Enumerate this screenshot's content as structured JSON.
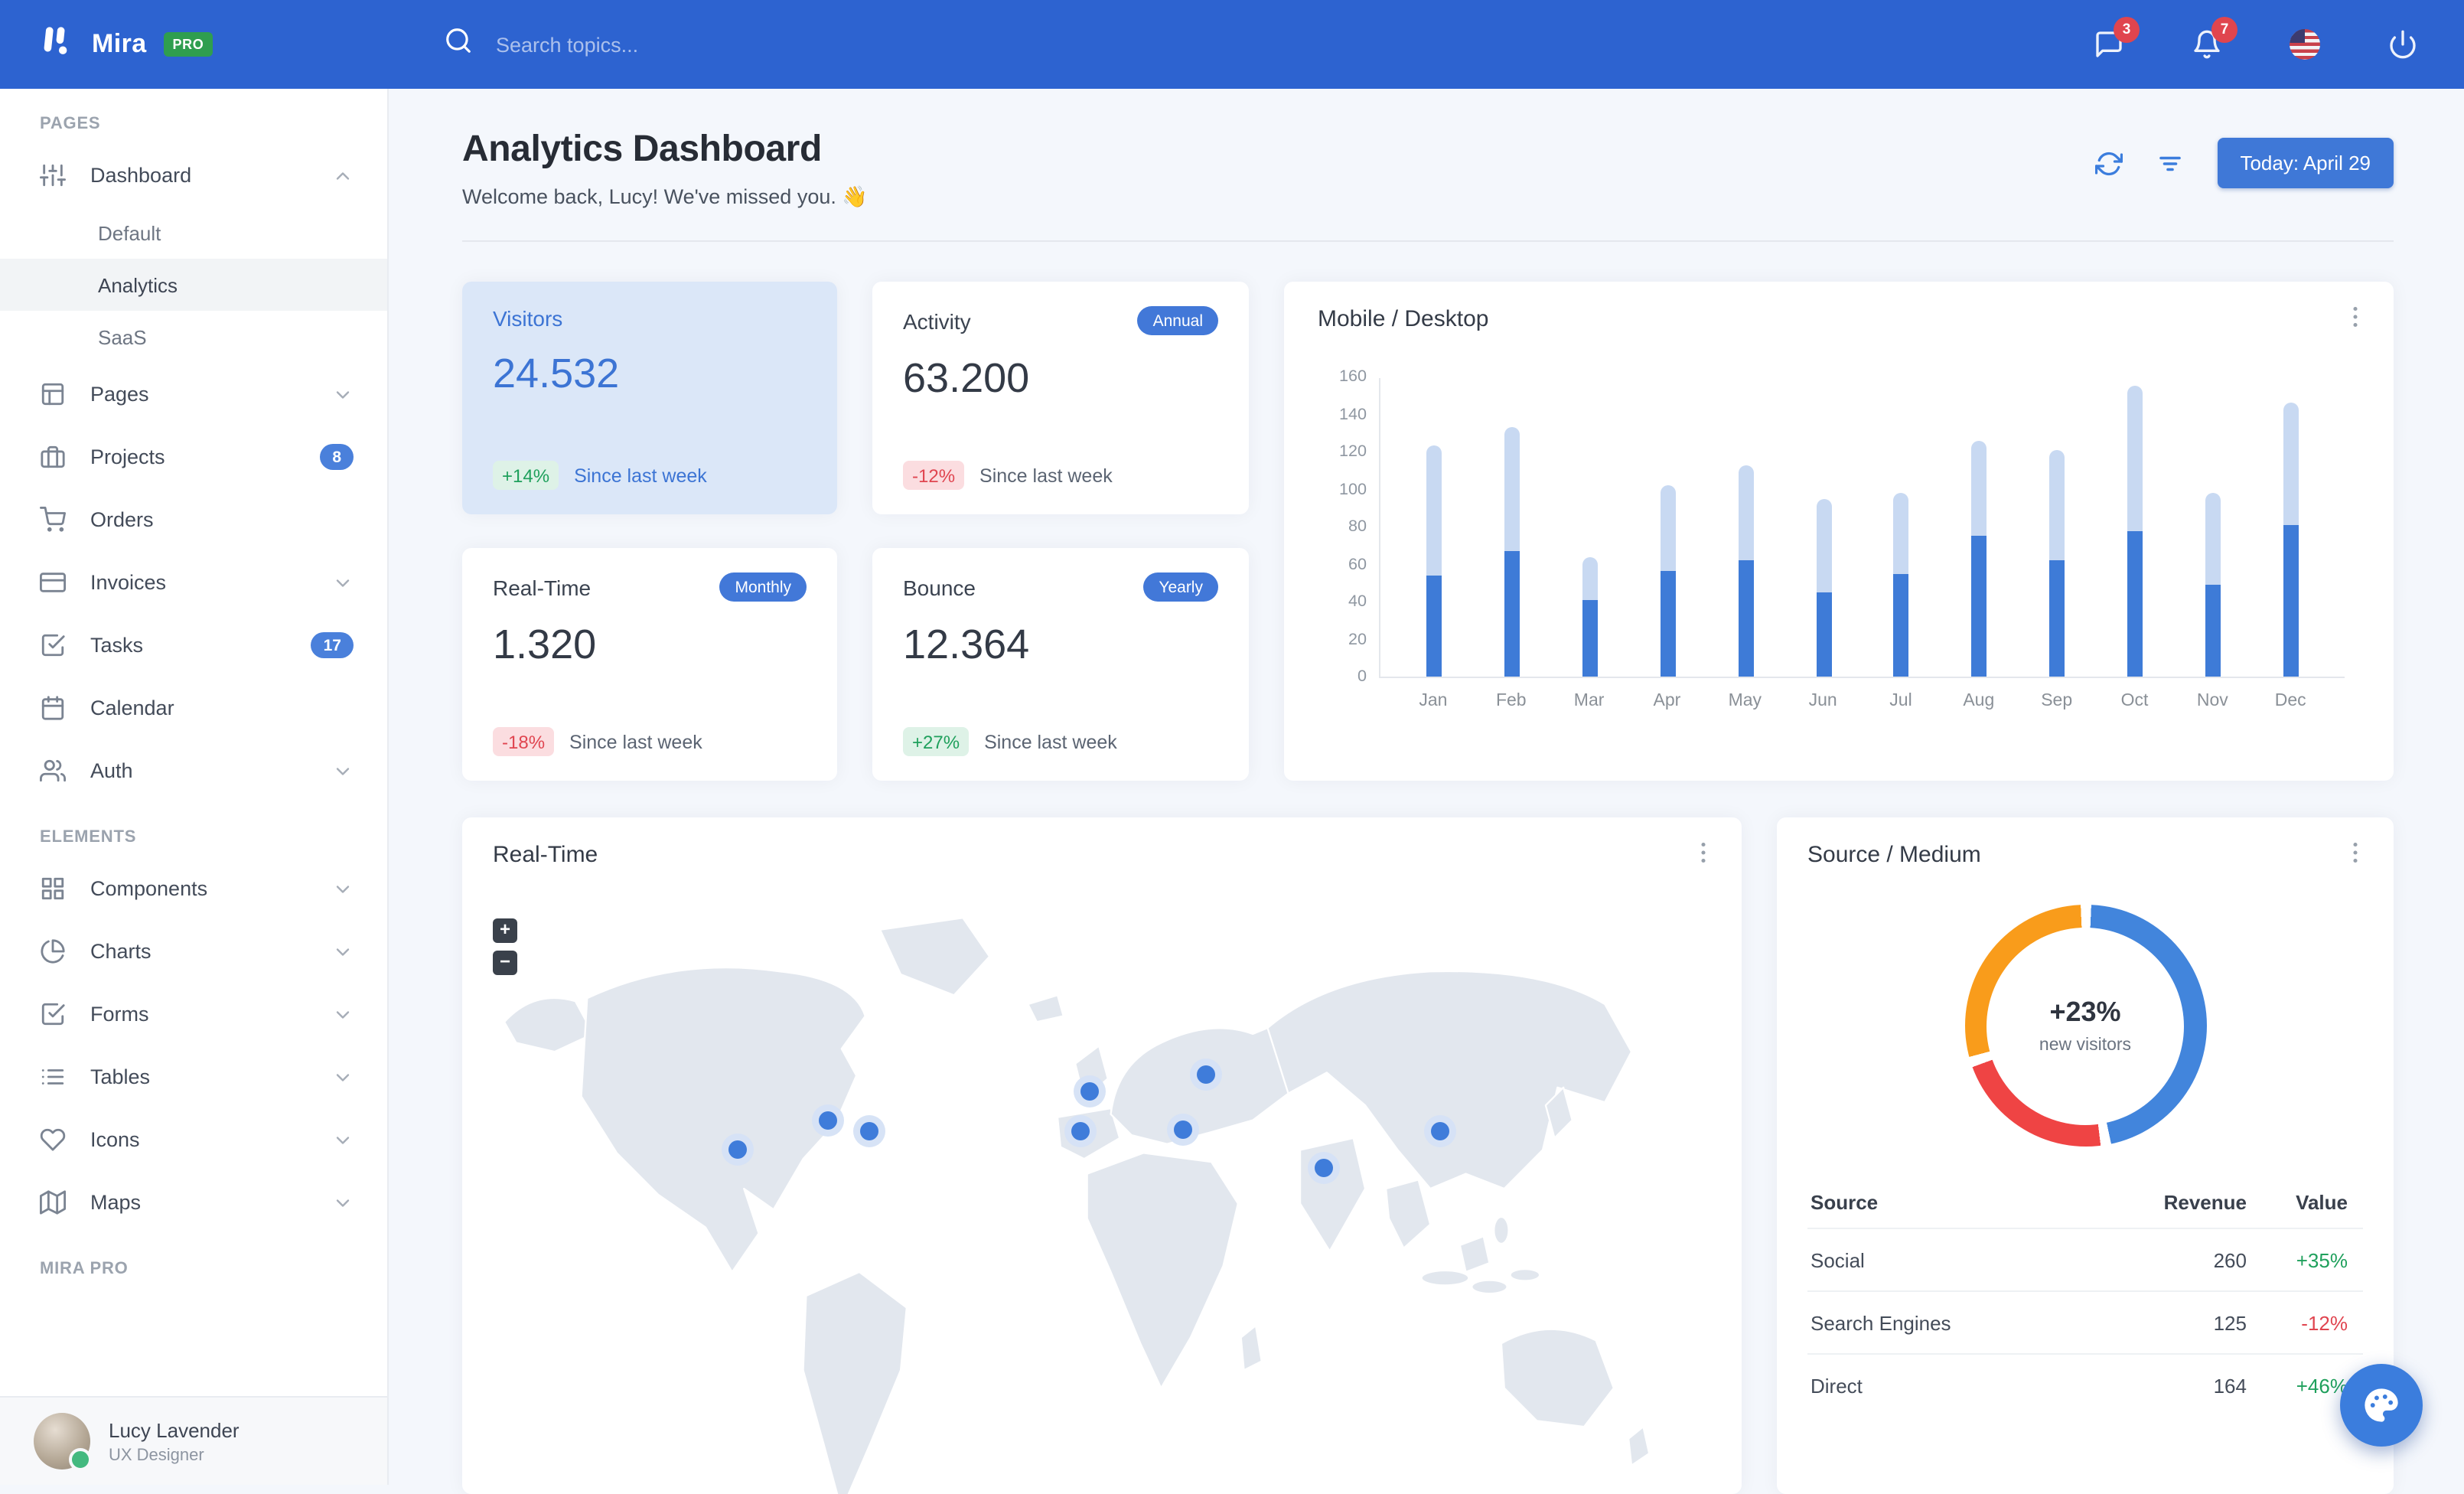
{
  "colors": {
    "navbar": "#2d63d0",
    "primary": "#3b7ddd",
    "bar_mobile": "#3e7bd7",
    "bar_desktop": "#c8d9f2",
    "success": "#1fa05c",
    "danger": "#e04550",
    "warning": "#f99c1b",
    "donut_red": "#ef4444",
    "badge_red": "#e0454e",
    "pro_green": "#2f9e4f",
    "land": "#e2e7ee"
  },
  "navbar": {
    "logo": "Mira",
    "pro_badge": "PRO",
    "search_placeholder": "Search topics...",
    "messages_badge": "3",
    "notifications_badge": "7"
  },
  "sidebar": {
    "sections": [
      {
        "label": "PAGES",
        "items": [
          {
            "label": "Dashboard",
            "icon": "sliders",
            "chevron": "up",
            "children": [
              {
                "label": "Default"
              },
              {
                "label": "Analytics",
                "active": true
              },
              {
                "label": "SaaS"
              }
            ]
          },
          {
            "label": "Pages",
            "icon": "layout",
            "chevron": "down"
          },
          {
            "label": "Projects",
            "icon": "briefcase",
            "badge": "8"
          },
          {
            "label": "Orders",
            "icon": "cart"
          },
          {
            "label": "Invoices",
            "icon": "credit-card",
            "chevron": "down"
          },
          {
            "label": "Tasks",
            "icon": "check-square",
            "badge": "17"
          },
          {
            "label": "Calendar",
            "icon": "calendar"
          },
          {
            "label": "Auth",
            "icon": "users",
            "chevron": "down"
          }
        ]
      },
      {
        "label": "ELEMENTS",
        "items": [
          {
            "label": "Components",
            "icon": "grid",
            "chevron": "down"
          },
          {
            "label": "Charts",
            "icon": "pie",
            "chevron": "down"
          },
          {
            "label": "Forms",
            "icon": "check-square",
            "chevron": "down"
          },
          {
            "label": "Tables",
            "icon": "list",
            "chevron": "down"
          },
          {
            "label": "Icons",
            "icon": "heart",
            "chevron": "down"
          },
          {
            "label": "Maps",
            "icon": "map",
            "chevron": "down"
          }
        ]
      }
    ],
    "footer_section_label": "MIRA PRO",
    "user": {
      "name": "Lucy Lavender",
      "role": "UX Designer"
    }
  },
  "header": {
    "title": "Analytics Dashboard",
    "welcome": "Welcome back, Lucy! We've missed you. 👋",
    "today_button": "Today: April 29"
  },
  "stats": [
    {
      "title": "Visitors",
      "badge": "",
      "value": "24.532",
      "delta": "+14%",
      "trend": "up",
      "caption": "Since last week",
      "variant": "accent"
    },
    {
      "title": "Activity",
      "badge": "Annual",
      "value": "63.200",
      "delta": "-12%",
      "trend": "down",
      "caption": "Since last week",
      "variant": "plain"
    },
    {
      "title": "Real-Time",
      "badge": "Monthly",
      "value": "1.320",
      "delta": "-18%",
      "trend": "down",
      "caption": "Since last week",
      "variant": "plain"
    },
    {
      "title": "Bounce",
      "badge": "Yearly",
      "value": "12.364",
      "delta": "+27%",
      "trend": "up",
      "caption": "Since last week",
      "variant": "plain"
    }
  ],
  "chart_data": [
    {
      "type": "bar",
      "stacked": true,
      "title": "Mobile / Desktop",
      "categories": [
        "Jan",
        "Feb",
        "Mar",
        "Apr",
        "May",
        "Jun",
        "Jul",
        "Aug",
        "Sep",
        "Oct",
        "Nov",
        "Dec"
      ],
      "series": [
        {
          "name": "Mobile",
          "values": [
            54,
            67,
            41,
            56,
            62,
            45,
            55,
            75,
            62,
            78,
            49,
            81
          ]
        },
        {
          "name": "Desktop",
          "values": [
            69,
            66,
            23,
            46,
            51,
            50,
            43,
            51,
            59,
            77,
            49,
            65
          ]
        }
      ],
      "ylim": [
        0,
        160
      ],
      "yticks": [
        0,
        20,
        40,
        60,
        80,
        100,
        120,
        140,
        160
      ],
      "grid": false,
      "legend": "none"
    },
    {
      "type": "pie",
      "subtype": "donut",
      "title": "Source / Medium",
      "labels": [
        "Social",
        "Search Engines",
        "Direct"
      ],
      "values": [
        260,
        125,
        164
      ],
      "slice_colors": [
        "#4285dc",
        "#ef4444",
        "#f99c1b"
      ],
      "center_value": "+23%",
      "center_label": "new visitors"
    }
  ],
  "realtime_map": {
    "title": "Real-Time",
    "zoom_in": "+",
    "zoom_out": "−",
    "markers": [
      {
        "x": 20.5,
        "y": 39.5
      },
      {
        "x": 27.8,
        "y": 34.9
      },
      {
        "x": 31.2,
        "y": 36.5
      },
      {
        "x": 49.0,
        "y": 30.5
      },
      {
        "x": 48.3,
        "y": 36.7
      },
      {
        "x": 58.4,
        "y": 27.7
      },
      {
        "x": 56.5,
        "y": 36.3
      },
      {
        "x": 67.9,
        "y": 42.3
      },
      {
        "x": 77.4,
        "y": 36.7
      }
    ]
  },
  "source_medium": {
    "title": "Source / Medium",
    "table": {
      "headers": [
        "Source",
        "Revenue",
        "Value"
      ],
      "rows": [
        {
          "source": "Social",
          "revenue": "260",
          "value": "+35%",
          "trend": "up"
        },
        {
          "source": "Search Engines",
          "revenue": "125",
          "value": "-12%",
          "trend": "down"
        },
        {
          "source": "Direct",
          "revenue": "164",
          "value": "+46%",
          "trend": "up"
        }
      ]
    }
  }
}
